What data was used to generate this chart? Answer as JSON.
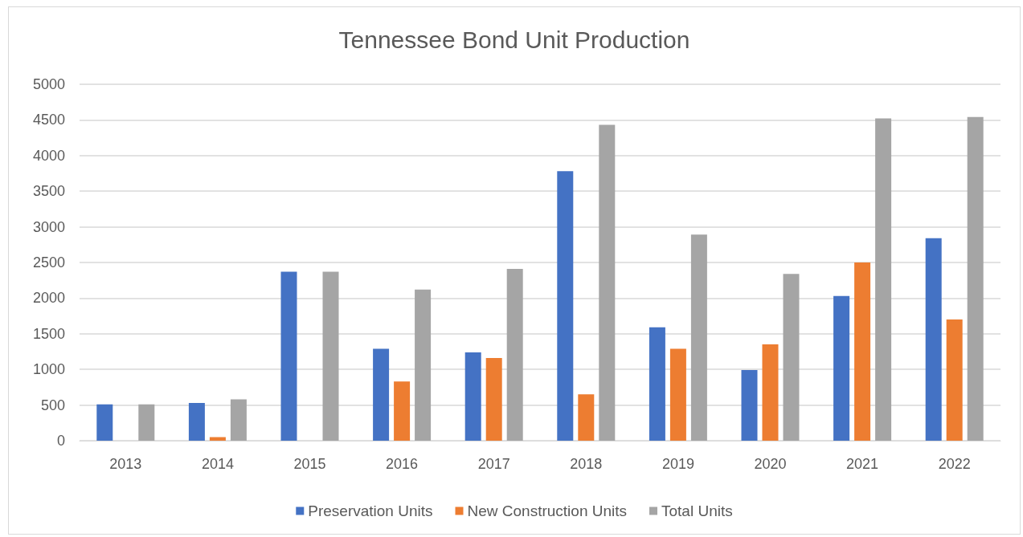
{
  "chart_data": {
    "type": "bar",
    "title": "Tennessee Bond Unit Production",
    "categories": [
      "2013",
      "2014",
      "2015",
      "2016",
      "2017",
      "2018",
      "2019",
      "2020",
      "2021",
      "2022"
    ],
    "series": [
      {
        "name": "Preservation Units",
        "color": "#4472c4",
        "values": [
          510,
          530,
          2370,
          1290,
          1240,
          3780,
          1590,
          990,
          2030,
          2840
        ]
      },
      {
        "name": "New Construction Units",
        "color": "#ed7d31",
        "values": [
          null,
          50,
          null,
          830,
          1160,
          650,
          1290,
          1350,
          2500,
          1700
        ]
      },
      {
        "name": "Total Units",
        "color": "#a5a5a5",
        "values": [
          510,
          580,
          2370,
          2120,
          2410,
          4430,
          2890,
          2340,
          4520,
          4540
        ]
      }
    ],
    "ylim": [
      0,
      5000
    ],
    "yticks": [
      0,
      500,
      1000,
      1500,
      2000,
      2500,
      3000,
      3500,
      4000,
      4500,
      5000
    ],
    "grid": "y",
    "legend": "bottom"
  }
}
